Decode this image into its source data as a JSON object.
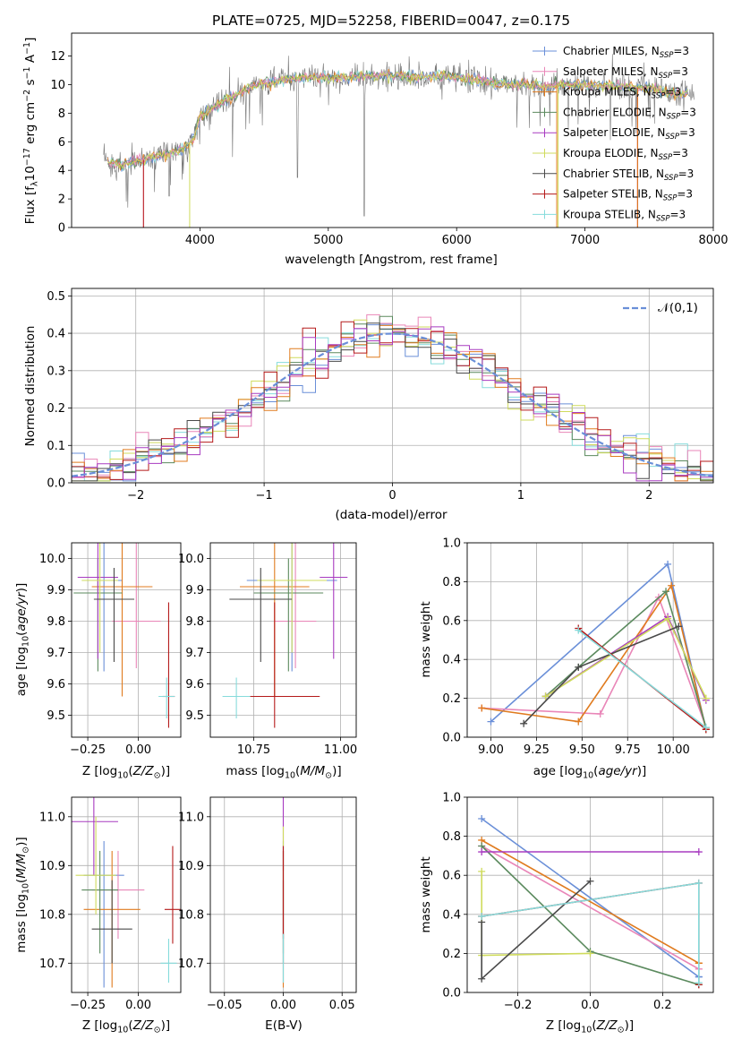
{
  "colors": {
    "c_miles": "#6a8fd8",
    "s_miles": "#e986b8",
    "k_miles": "#e07b1f",
    "c_elodie": "#5b8a5e",
    "s_elodie": "#a83bc0",
    "k_elodie": "#cfdb5c",
    "c_stelib": "#4a4a4a",
    "s_stelib": "#b51a1a",
    "k_stelib": "#86dbdb",
    "normal": "#6a8fd8"
  },
  "series_names": [
    "Chabrier MILES, N_SSP=3",
    "Salpeter MILES, N_SSP=3",
    "Kroupa MILES, N_SSP=3",
    "Chabrier ELODIE, N_SSP=3",
    "Salpeter ELODIE, N_SSP=3",
    "Kroupa ELODIE, N_SSP=3",
    "Chabrier STELIB, N_SSP=3",
    "Salpeter STELIB, N_SSP=3",
    "Kroupa STELIB, N_SSP=3"
  ],
  "chart_data": [
    {
      "type": "line",
      "title": "PLATE=0725, MJD=52258, FIBERID=0047, z=0.175",
      "xlabel": "wavelength [Angstrom, rest frame]",
      "ylabel": "Flux [fλ10^-17 erg cm^-2 s^-1 A^-1]",
      "xlim": [
        3000,
        8000
      ],
      "ylim": [
        0,
        13.6
      ],
      "xticks": [
        4000,
        5000,
        6000,
        7000,
        8000
      ],
      "yticks": [
        0,
        2,
        4,
        6,
        8,
        10,
        12
      ],
      "continuum": {
        "x": [
          3250,
          3400,
          3550,
          3700,
          3850,
          3950,
          4000,
          4200,
          4400,
          4500,
          4700,
          4900,
          5100,
          5300,
          5500,
          5700,
          5900,
          6100,
          6300,
          6500,
          6700,
          6900,
          7100,
          7300,
          7500,
          7700,
          7850
        ],
        "y": [
          4.6,
          4.4,
          4.7,
          5.1,
          5.4,
          6.2,
          7.8,
          8.9,
          9.8,
          10.1,
          10.4,
          10.5,
          10.5,
          10.6,
          10.6,
          10.5,
          10.6,
          10.4,
          10.1,
          10.0,
          9.9,
          10.0,
          9.9,
          9.9,
          9.7,
          9.4,
          9.3
        ]
      },
      "legend": "upper right"
    },
    {
      "type": "step",
      "xlabel": "(data-model)/error",
      "ylabel": "Normed distribution",
      "xlim": [
        -2.5,
        2.5
      ],
      "ylim": [
        0,
        0.52
      ],
      "xticks": [
        -2,
        -1,
        0,
        1,
        2
      ],
      "yticks": [
        0.0,
        0.1,
        0.2,
        0.3,
        0.4,
        0.5
      ],
      "bin_width": 0.1,
      "reference_curve": {
        "name": "𝒩(0,1)",
        "mean": 0,
        "sigma": 1
      },
      "legend": "upper right"
    },
    {
      "type": "scatter",
      "xlabel": "Z [log10(Z/Z⊙)]",
      "ylabel": "age [log10(age/yr)]",
      "xlim": [
        -0.33,
        0.21
      ],
      "ylim": [
        9.43,
        10.05
      ],
      "xticks": [
        -0.25,
        0.0
      ],
      "yticks": [
        9.5,
        9.6,
        9.7,
        9.8,
        9.9,
        10.0
      ],
      "points": [
        {
          "x": -0.17,
          "y": 9.93,
          "xerr": 0.09,
          "yerr": [
            0.29,
            0.12
          ]
        },
        {
          "x": -0.01,
          "y": 9.8,
          "xerr": 0.12,
          "yerr": [
            0.15,
            0.25
          ]
        },
        {
          "x": -0.08,
          "y": 9.91,
          "xerr": 0.15,
          "yerr": [
            0.35,
            0.15
          ]
        },
        {
          "x": -0.2,
          "y": 9.89,
          "xerr": 0.12,
          "yerr": [
            0.25,
            0.11
          ]
        },
        {
          "x": -0.2,
          "y": 9.94,
          "xerr": 0.1,
          "yerr": [
            0.26,
            0.11
          ]
        },
        {
          "x": -0.19,
          "y": 9.93,
          "xerr": 0.09,
          "yerr": [
            0.23,
            0.12
          ]
        },
        {
          "x": -0.12,
          "y": 9.87,
          "xerr": 0.1,
          "yerr": [
            0.2,
            0.1
          ]
        },
        {
          "x": 0.15,
          "y": 9.56,
          "xerr": 0.03,
          "yerr": [
            0.1,
            0.3
          ]
        },
        {
          "x": 0.14,
          "y": 9.56,
          "xerr": 0.04,
          "yerr": [
            0.07,
            0.06
          ]
        }
      ]
    },
    {
      "type": "scatter",
      "xlabel": "mass [log10(M/M⊙)]",
      "ylabel": "",
      "xlim": [
        10.625,
        11.045
      ],
      "ylim": [
        9.43,
        10.05
      ],
      "xticks": [
        10.75,
        11.0
      ],
      "yticks": [
        9.5,
        9.6,
        9.7,
        9.8,
        9.9,
        10.0
      ],
      "points": [
        {
          "x": 10.86,
          "y": 9.93,
          "xerr": 0.13,
          "yerr": [
            0.29,
            0.12
          ]
        },
        {
          "x": 10.87,
          "y": 9.8,
          "xerr": 0.06,
          "yerr": [
            0.15,
            0.25
          ]
        },
        {
          "x": 10.81,
          "y": 9.91,
          "xerr": 0.1,
          "yerr": [
            0.35,
            0.15
          ]
        },
        {
          "x": 10.85,
          "y": 9.89,
          "xerr": 0.1,
          "yerr": [
            0.25,
            0.11
          ]
        },
        {
          "x": 10.98,
          "y": 9.94,
          "xerr": 0.04,
          "yerr": [
            0.26,
            0.11
          ]
        },
        {
          "x": 10.86,
          "y": 9.93,
          "xerr": 0.1,
          "yerr": [
            0.23,
            0.12
          ]
        },
        {
          "x": 10.77,
          "y": 9.87,
          "xerr": 0.09,
          "yerr": [
            0.2,
            0.1
          ]
        },
        {
          "x": 10.81,
          "y": 9.56,
          "xerr": 0.13,
          "yerr": [
            0.1,
            0.3
          ]
        },
        {
          "x": 10.7,
          "y": 9.56,
          "xerr": 0.04,
          "yerr": [
            0.07,
            0.06
          ]
        }
      ]
    },
    {
      "type": "line",
      "xlabel": "age [log10(age/yr)]",
      "ylabel": "mass weight",
      "xlim": [
        8.87,
        10.22
      ],
      "ylim": [
        0,
        1.0
      ],
      "xticks": [
        9.0,
        9.25,
        9.5,
        9.75,
        10.0
      ],
      "yticks": [
        0.0,
        0.2,
        0.4,
        0.6,
        0.8,
        1.0
      ],
      "series": [
        {
          "x": [
            9.0,
            9.97,
            10.18
          ],
          "y": [
            0.08,
            0.89,
            0.04
          ]
        },
        {
          "x": [
            8.95,
            9.6,
            9.92,
            10.18
          ],
          "y": [
            0.15,
            0.12,
            0.72,
            0.05
          ]
        },
        {
          "x": [
            8.95,
            9.48,
            9.99,
            10.18
          ],
          "y": [
            0.15,
            0.08,
            0.78,
            0.04
          ]
        },
        {
          "x": [
            9.3,
            9.48,
            9.96,
            10.18
          ],
          "y": [
            0.21,
            0.36,
            0.75,
            0.05
          ]
        },
        {
          "x": [
            9.3,
            9.97,
            10.18
          ],
          "y": [
            0.21,
            0.62,
            0.19
          ]
        },
        {
          "x": [
            9.3,
            9.97,
            10.18
          ],
          "y": [
            0.21,
            0.61,
            0.2
          ]
        },
        {
          "x": [
            9.18,
            9.48,
            10.03
          ],
          "y": [
            0.07,
            0.36,
            0.57
          ]
        },
        {
          "x": [
            9.48,
            10.18
          ],
          "y": [
            0.56,
            0.04
          ]
        },
        {
          "x": [
            9.48,
            10.18
          ],
          "y": [
            0.55,
            0.05
          ]
        }
      ]
    },
    {
      "type": "scatter",
      "xlabel": "Z [log10(Z/Z⊙)]",
      "ylabel": "mass [log10(M/M⊙)]",
      "xlim": [
        -0.33,
        0.21
      ],
      "ylim": [
        10.64,
        11.04
      ],
      "xticks": [
        -0.25,
        0.0
      ],
      "yticks": [
        10.7,
        10.8,
        10.9,
        11.0
      ],
      "points": [
        {
          "x": -0.17,
          "y": 10.88,
          "xerr": 0.1,
          "yerr": [
            0.23,
            0.07
          ]
        },
        {
          "x": -0.1,
          "y": 10.85,
          "xerr": 0.13,
          "yerr": [
            0.1,
            0.08
          ]
        },
        {
          "x": -0.13,
          "y": 10.81,
          "xerr": 0.14,
          "yerr": [
            0.16,
            0.12
          ]
        },
        {
          "x": -0.19,
          "y": 10.85,
          "xerr": 0.09,
          "yerr": [
            0.13,
            0.08
          ]
        },
        {
          "x": -0.22,
          "y": 10.99,
          "xerr": 0.12,
          "yerr": [
            0.11,
            0.14
          ]
        },
        {
          "x": -0.21,
          "y": 10.88,
          "xerr": 0.1,
          "yerr": [
            0.08,
            0.12
          ]
        },
        {
          "x": -0.13,
          "y": 10.77,
          "xerr": 0.1,
          "yerr": [
            0.07,
            0.1
          ]
        },
        {
          "x": 0.17,
          "y": 10.81,
          "xerr": 0.04,
          "yerr": [
            0.07,
            0.13
          ]
        },
        {
          "x": 0.15,
          "y": 10.7,
          "xerr": 0.04,
          "yerr": [
            0.04,
            0.05
          ]
        }
      ]
    },
    {
      "type": "scatter",
      "xlabel": "E(B-V)",
      "ylabel": "",
      "xlim": [
        -0.062,
        0.062
      ],
      "ylim": [
        10.64,
        11.04
      ],
      "xticks": [
        -0.05,
        0.0,
        0.05
      ],
      "yticks": [
        10.7,
        10.8,
        10.9,
        11.0
      ],
      "points": [
        {
          "x": 0.0,
          "y": 10.88,
          "yerr": [
            0.22,
            0.07
          ]
        },
        {
          "x": 0.0,
          "y": 10.85,
          "yerr": [
            0.1,
            0.08
          ]
        },
        {
          "x": 0.0,
          "y": 10.81,
          "yerr": [
            0.16,
            0.12
          ]
        },
        {
          "x": 0.0,
          "y": 10.85,
          "yerr": [
            0.13,
            0.08
          ]
        },
        {
          "x": 0.0,
          "y": 10.99,
          "yerr": [
            0.1,
            0.14
          ]
        },
        {
          "x": 0.0,
          "y": 10.88,
          "yerr": [
            0.08,
            0.1
          ]
        },
        {
          "x": 0.0,
          "y": 10.77,
          "yerr": [
            0.07,
            0.1
          ]
        },
        {
          "x": 0.0,
          "y": 10.81,
          "yerr": [
            0.06,
            0.13
          ]
        },
        {
          "x": 0.0,
          "y": 10.7,
          "yerr": [
            0.04,
            0.06
          ]
        }
      ]
    },
    {
      "type": "line",
      "xlabel": "Z [log10(Z/Z⊙)]",
      "ylabel": "mass weight",
      "xlim": [
        -0.34,
        0.34
      ],
      "ylim": [
        0,
        1.0
      ],
      "xticks": [
        -0.2,
        0.0,
        0.2
      ],
      "yticks": [
        0.0,
        0.2,
        0.4,
        0.6,
        0.8,
        1.0
      ],
      "series": [
        {
          "x": [
            -0.3,
            0.3,
            0.3
          ],
          "y": [
            0.89,
            0.08,
            0.08
          ]
        },
        {
          "x": [
            -0.3,
            0.3,
            0.3
          ],
          "y": [
            0.75,
            0.12,
            0.12
          ]
        },
        {
          "x": [
            -0.3,
            0.3,
            0.3
          ],
          "y": [
            0.78,
            0.15,
            0.15
          ]
        },
        {
          "x": [
            -0.3,
            0.0,
            0.3
          ],
          "y": [
            0.75,
            0.21,
            0.04
          ]
        },
        {
          "x": [
            -0.3,
            0.3
          ],
          "y": [
            0.72,
            0.72
          ]
        },
        {
          "x": [
            -0.3,
            -0.3,
            0.0
          ],
          "y": [
            0.62,
            0.19,
            0.2
          ]
        },
        {
          "x": [
            -0.3,
            -0.3,
            0.0
          ],
          "y": [
            0.36,
            0.07,
            0.57
          ]
        },
        {
          "x": [
            -0.3,
            0.3,
            0.3
          ],
          "y": [
            0.39,
            0.56,
            0.04
          ]
        },
        {
          "x": [
            -0.3,
            0.3,
            0.3
          ],
          "y": [
            0.39,
            0.56,
            0.05
          ]
        }
      ]
    }
  ]
}
